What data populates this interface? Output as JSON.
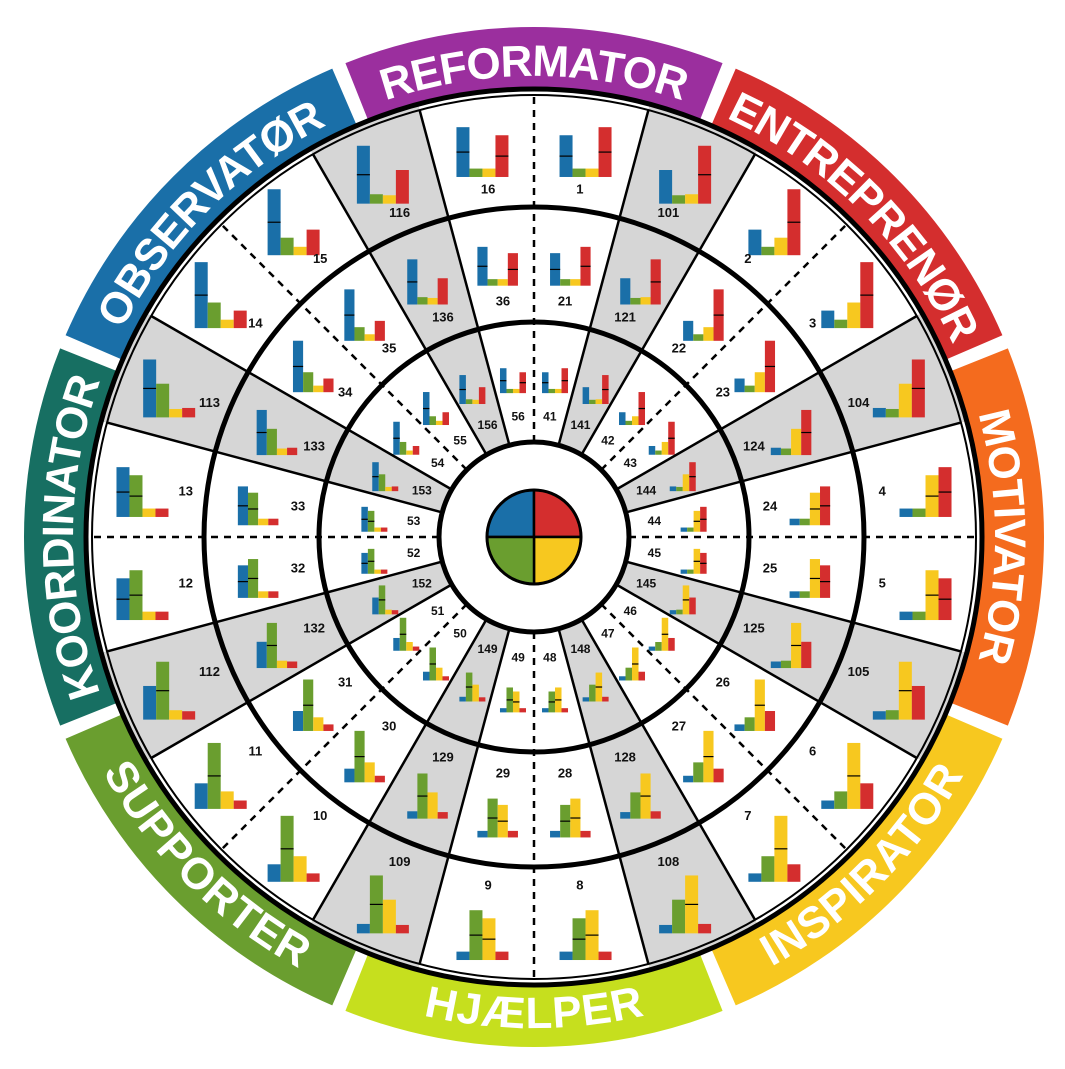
{
  "colors": {
    "blue": "#1a6fa8",
    "green": "#6a9e2f",
    "yellow": "#f7c81f",
    "red": "#d42e2e",
    "shaded": "#d6d6d6",
    "ring_line": "#000000"
  },
  "outer_ring": [
    {
      "label": "REFORMATOR",
      "color": "#9b2f9e"
    },
    {
      "label": "ENTREPRENØR",
      "color": "#d42e2e"
    },
    {
      "label": "MOTIVATOR",
      "color": "#f46b1e"
    },
    {
      "label": "INSPIRATOR",
      "color": "#f7c81f"
    },
    {
      "label": "HJÆLPER",
      "color": "#c6df1e"
    },
    {
      "label": "SUPPORTER",
      "color": "#6a9e2f"
    },
    {
      "label": "KOORDINATOR",
      "color": "#176f62"
    },
    {
      "label": "OBSERVATØR",
      "color": "#1a6fa8"
    }
  ],
  "ring_outer_numbers": [
    "1",
    "101",
    "2",
    "3",
    "104",
    "4",
    "5",
    "105",
    "6",
    "7",
    "108",
    "8",
    "9",
    "109",
    "10",
    "11",
    "112",
    "12",
    "13",
    "113",
    "14",
    "15",
    "116",
    "16"
  ],
  "ring_middle_numbers": [
    "21",
    "121",
    "22",
    "23",
    "124",
    "24",
    "25",
    "125",
    "26",
    "27",
    "128",
    "28",
    "29",
    "129",
    "30",
    "31",
    "132",
    "32",
    "33",
    "133",
    "34",
    "35",
    "136",
    "36"
  ],
  "ring_inner_numbers": [
    "41",
    "141",
    "42",
    "43",
    "144",
    "44",
    "45",
    "145",
    "46",
    "47",
    "148",
    "48",
    "49",
    "149",
    "50",
    "51",
    "152",
    "52",
    "53",
    "153",
    "54",
    "55",
    "156",
    "56"
  ]
}
